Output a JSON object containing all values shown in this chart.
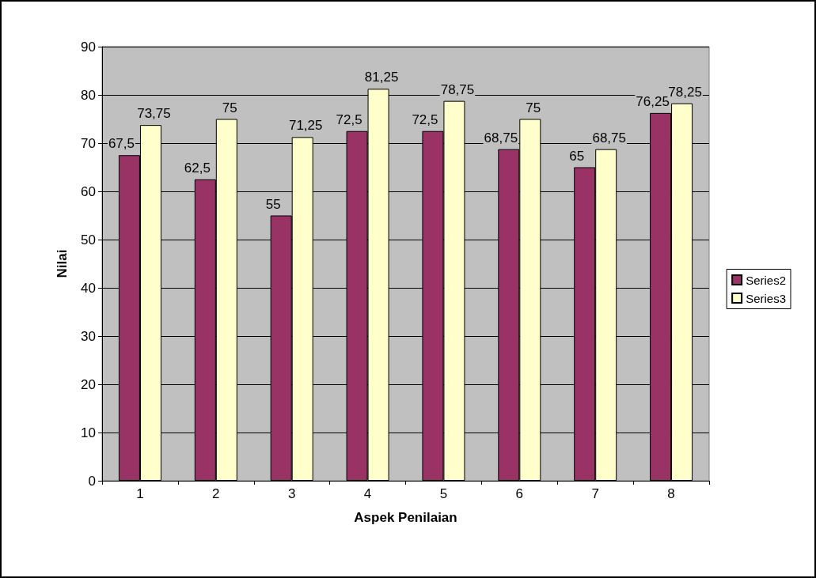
{
  "chart_data": {
    "type": "bar",
    "xlabel": "Aspek Penilaian",
    "ylabel": "Nilai",
    "categories": [
      "1",
      "2",
      "3",
      "4",
      "5",
      "6",
      "7",
      "8"
    ],
    "series": [
      {
        "name": "Series2",
        "color": "#993366",
        "values": [
          67.5,
          62.5,
          55,
          72.5,
          72.5,
          68.75,
          65,
          76.25
        ],
        "value_labels": [
          "67,5",
          "62,5",
          "55",
          "72,5",
          "72,5",
          "68,75",
          "65",
          "76,25"
        ]
      },
      {
        "name": "Series3",
        "color": "#ffffcc",
        "values": [
          73.75,
          75,
          71.25,
          81.25,
          78.75,
          75,
          68.75,
          78.25
        ],
        "value_labels": [
          "73,75",
          "75",
          "71,25",
          "81,25",
          "78,75",
          "75",
          "68,75",
          "78,25"
        ]
      }
    ],
    "ylim": [
      0,
      90
    ],
    "yticks": [
      0,
      10,
      20,
      30,
      40,
      50,
      60,
      70,
      80,
      90
    ],
    "grid": "y",
    "legend": "right"
  }
}
